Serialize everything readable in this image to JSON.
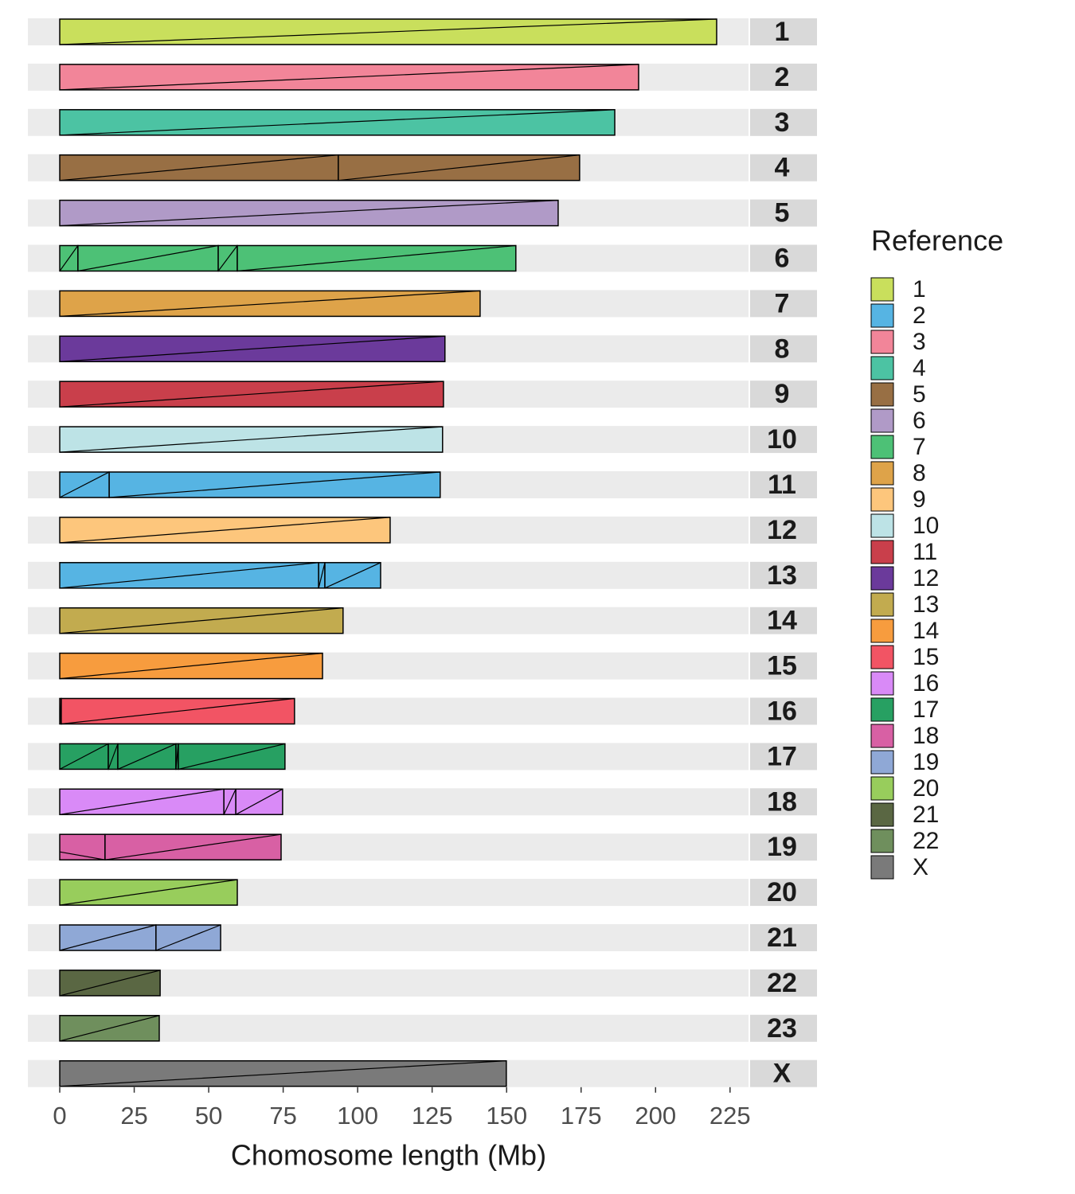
{
  "chart_data": {
    "type": "bar",
    "x_label": "Chomosome length (Mb)",
    "xlim": [
      -10.7,
      231.2
    ],
    "xticks": [
      0,
      25,
      50,
      75,
      100,
      125,
      150,
      175,
      200,
      225
    ],
    "categories": [
      "1",
      "2",
      "3",
      "4",
      "5",
      "6",
      "7",
      "8",
      "9",
      "10",
      "11",
      "12",
      "13",
      "14",
      "15",
      "16",
      "17",
      "18",
      "19",
      "20",
      "21",
      "22",
      "23",
      "X"
    ],
    "segments": [
      [
        {
          "start": 0,
          "end": 220.5,
          "ref": "1"
        }
      ],
      [
        {
          "start": 0,
          "end": 194.3,
          "ref": "3"
        }
      ],
      [
        {
          "start": 0,
          "end": 186.3,
          "ref": "4"
        }
      ],
      [
        {
          "start": 0,
          "end": 93.5,
          "ref": "5"
        },
        {
          "start": 93.5,
          "end": 174.5,
          "ref": "5"
        }
      ],
      [
        {
          "start": 0,
          "end": 167.3,
          "ref": "6"
        }
      ],
      [
        {
          "start": 0,
          "end": 6.1,
          "ref": "7"
        },
        {
          "start": 6.1,
          "end": 53.2,
          "ref": "7"
        },
        {
          "start": 53.2,
          "end": 59.6,
          "ref": "7"
        },
        {
          "start": 59.6,
          "end": 153.1,
          "ref": "7"
        }
      ],
      [
        {
          "start": 0,
          "end": 141.1,
          "ref": "8"
        }
      ],
      [
        {
          "start": 0,
          "end": 129.3,
          "ref": "12"
        }
      ],
      [
        {
          "start": 0,
          "end": 128.8,
          "ref": "11"
        }
      ],
      [
        {
          "start": 0,
          "end": 128.5,
          "ref": "10"
        }
      ],
      [
        {
          "start": 0,
          "end": 16.6,
          "ref": "2"
        },
        {
          "start": 16.6,
          "end": 127.7,
          "ref": "2"
        }
      ],
      [
        {
          "start": 0,
          "end": 110.9,
          "ref": "9"
        }
      ],
      [
        {
          "start": 0,
          "end": 86.9,
          "ref": "2"
        },
        {
          "start": 86.9,
          "end": 89.0,
          "ref": "2"
        },
        {
          "start": 89.0,
          "end": 107.7,
          "ref": "2"
        }
      ],
      [
        {
          "start": 0,
          "end": 95.1,
          "ref": "13"
        }
      ],
      [
        {
          "start": 0,
          "end": 88.2,
          "ref": "14"
        }
      ],
      [
        {
          "start": 0,
          "end": 0.5,
          "ref": "15"
        },
        {
          "start": 0.5,
          "end": 78.8,
          "ref": "15"
        }
      ],
      [
        {
          "start": 0,
          "end": 16.3,
          "ref": "17"
        },
        {
          "start": 16.3,
          "end": 19.5,
          "ref": "17"
        },
        {
          "start": 19.5,
          "end": 39.0,
          "ref": "17"
        },
        {
          "start": 39.0,
          "end": 39.8,
          "ref": "17"
        },
        {
          "start": 39.8,
          "end": 75.6,
          "ref": "17"
        }
      ],
      [
        {
          "start": 0,
          "end": 55.1,
          "ref": "16"
        },
        {
          "start": 55.1,
          "end": 59.1,
          "ref": "16"
        },
        {
          "start": 59.1,
          "end": 74.8,
          "ref": "16"
        }
      ],
      [
        {
          "start": 0,
          "end": 15.2,
          "ref": "18",
          "strand": "-"
        },
        {
          "start": 15.2,
          "end": 74.3,
          "ref": "18"
        }
      ],
      [
        {
          "start": 0,
          "end": 59.6,
          "ref": "20"
        }
      ],
      [
        {
          "start": 0,
          "end": 32.3,
          "ref": "19"
        },
        {
          "start": 32.3,
          "end": 54.0,
          "ref": "19"
        }
      ],
      [
        {
          "start": 0,
          "end": 33.7,
          "ref": "21"
        }
      ],
      [
        {
          "start": 0,
          "end": 33.4,
          "ref": "22"
        }
      ],
      [
        {
          "start": 0,
          "end": 149.9,
          "ref": "X"
        }
      ]
    ],
    "legend": {
      "title": "Reference",
      "entries": [
        {
          "name": "1",
          "color": "#c9df5c"
        },
        {
          "name": "2",
          "color": "#56b4e3"
        },
        {
          "name": "3",
          "color": "#f28599"
        },
        {
          "name": "4",
          "color": "#4cc3a3"
        },
        {
          "name": "5",
          "color": "#986f44"
        },
        {
          "name": "6",
          "color": "#b09ac7"
        },
        {
          "name": "7",
          "color": "#4dc176"
        },
        {
          "name": "8",
          "color": "#dea349"
        },
        {
          "name": "9",
          "color": "#fdc67c"
        },
        {
          "name": "10",
          "color": "#bde3e6"
        },
        {
          "name": "11",
          "color": "#c93f4b"
        },
        {
          "name": "12",
          "color": "#6b3a9b"
        },
        {
          "name": "13",
          "color": "#c2ab4f"
        },
        {
          "name": "14",
          "color": "#f79c3e"
        },
        {
          "name": "15",
          "color": "#f25464"
        },
        {
          "name": "16",
          "color": "#d98af7"
        },
        {
          "name": "17",
          "color": "#27a062"
        },
        {
          "name": "18",
          "color": "#d860a4"
        },
        {
          "name": "19",
          "color": "#8fa8d6"
        },
        {
          "name": "20",
          "color": "#98cd5c"
        },
        {
          "name": "21",
          "color": "#5a6743"
        },
        {
          "name": "22",
          "color": "#6f8f5d"
        },
        {
          "name": "X",
          "color": "#7a7a7a"
        }
      ]
    }
  }
}
